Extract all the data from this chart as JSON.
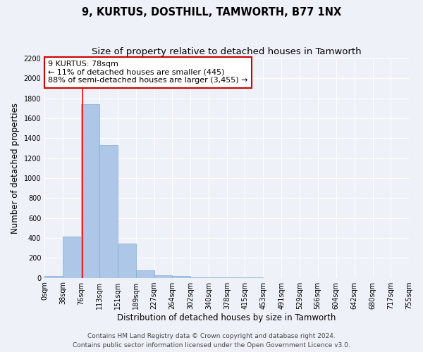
{
  "title": "9, KURTUS, DOSTHILL, TAMWORTH, B77 1NX",
  "subtitle": "Size of property relative to detached houses in Tamworth",
  "xlabel": "Distribution of detached houses by size in Tamworth",
  "ylabel": "Number of detached properties",
  "bar_color": "#aec6e8",
  "bar_edge_color": "#7aafd4",
  "red_line_x": 78,
  "bin_edges": [
    0,
    38,
    76,
    113,
    151,
    189,
    227,
    264,
    302,
    340,
    378,
    415,
    453,
    491,
    529,
    566,
    604,
    642,
    680,
    717,
    755
  ],
  "bar_heights": [
    15,
    415,
    1740,
    1335,
    340,
    75,
    25,
    15,
    5,
    2,
    1,
    1,
    0,
    0,
    0,
    0,
    0,
    0,
    0,
    0
  ],
  "xlim_min": 0,
  "xlim_max": 755,
  "ylim_min": 0,
  "ylim_max": 2200,
  "yticks": [
    0,
    200,
    400,
    600,
    800,
    1000,
    1200,
    1400,
    1600,
    1800,
    2000,
    2200
  ],
  "xtick_labels": [
    "0sqm",
    "38sqm",
    "76sqm",
    "113sqm",
    "151sqm",
    "189sqm",
    "227sqm",
    "264sqm",
    "302sqm",
    "340sqm",
    "378sqm",
    "415sqm",
    "453sqm",
    "491sqm",
    "529sqm",
    "566sqm",
    "604sqm",
    "642sqm",
    "680sqm",
    "717sqm",
    "755sqm"
  ],
  "annotation_text": "9 KURTUS: 78sqm\n← 11% of detached houses are smaller (445)\n88% of semi-detached houses are larger (3,455) →",
  "annotation_box_color": "#ffffff",
  "annotation_box_edge_color": "#cc0000",
  "footer_line1": "Contains HM Land Registry data © Crown copyright and database right 2024.",
  "footer_line2": "Contains public sector information licensed under the Open Government Licence v3.0.",
  "background_color": "#eef2f8",
  "grid_color": "#ffffff",
  "title_fontsize": 10.5,
  "subtitle_fontsize": 9.5,
  "ylabel_fontsize": 8.5,
  "xlabel_fontsize": 8.5,
  "tick_fontsize": 7,
  "annotation_fontsize": 8,
  "footer_fontsize": 6.5
}
